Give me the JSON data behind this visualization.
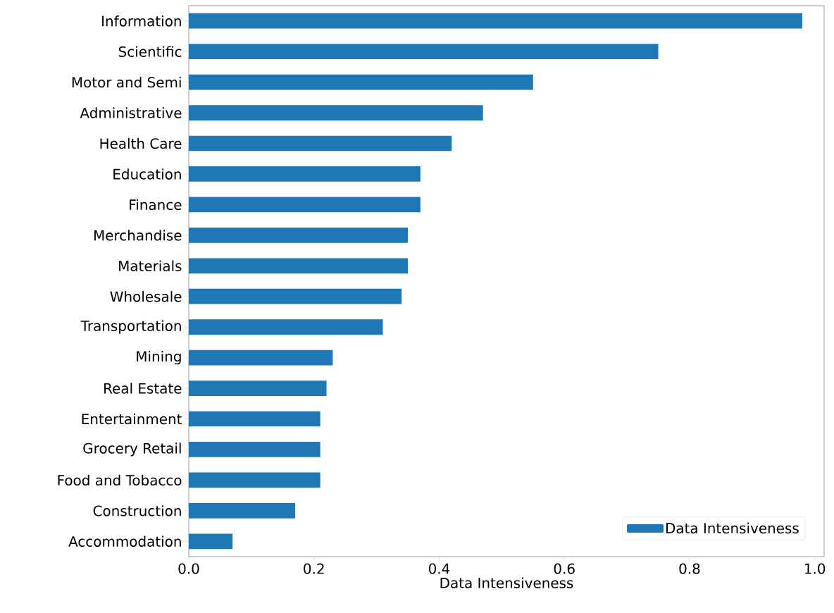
{
  "chart_data": {
    "type": "bar",
    "orientation": "horizontal",
    "xlabel": "Data Intensiveness",
    "categories": [
      "Information",
      "Scientific",
      "Motor and Semi",
      "Administrative",
      "Health Care",
      "Education",
      "Finance",
      "Merchandise",
      "Materials",
      "Wholesale",
      "Transportation",
      "Mining",
      "Real Estate",
      "Entertainment",
      "Grocery Retail",
      "Food and Tobacco",
      "Construction",
      "Accommodation"
    ],
    "series": [
      {
        "name": "Data Intensiveness",
        "color": "#1f77b4",
        "values": [
          0.98,
          0.75,
          0.55,
          0.47,
          0.42,
          0.37,
          0.37,
          0.35,
          0.35,
          0.34,
          0.31,
          0.23,
          0.22,
          0.21,
          0.21,
          0.21,
          0.17,
          0.07
        ]
      }
    ],
    "xlim": [
      0,
      1.015
    ],
    "xticks": [
      {
        "value": 0,
        "label": "0.0"
      },
      {
        "value": 0.2,
        "label": "0.2"
      },
      {
        "value": 0.4,
        "label": "0.4"
      },
      {
        "value": 0.6,
        "label": "0.6"
      },
      {
        "value": 0.8,
        "label": "0.8"
      },
      {
        "value": 1.0,
        "label": "1.0"
      }
    ],
    "grid": false,
    "legend": "bottom right"
  }
}
